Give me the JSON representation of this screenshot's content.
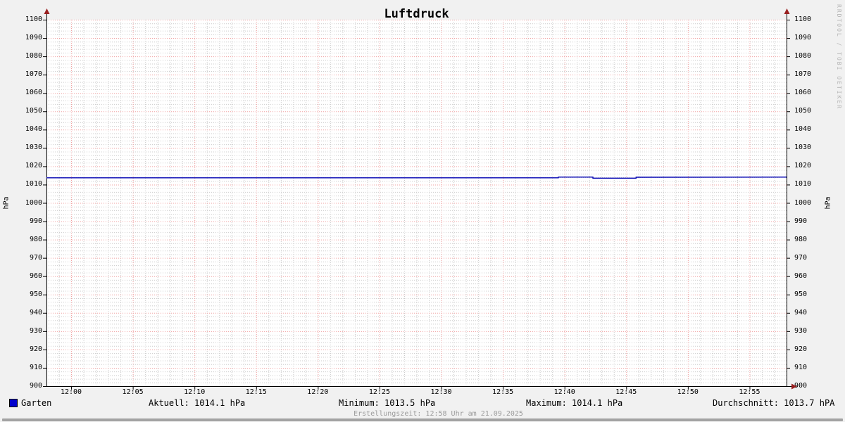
{
  "title": "Luftdruck",
  "watermark": "RRDTOOL / TOBI OETIKER",
  "footer": {
    "creation_text": "Erstellungszeit: 12:58 Uhr am 21.09.2025"
  },
  "colors": {
    "background": "#f1f1f1",
    "plot_background": "#ffffff",
    "major_grid": "#f0a0a0",
    "minor_grid": "#cccccc",
    "axis": "#000000",
    "arrow": "#992020",
    "line": "#0000b3",
    "legend_swatch": "#0000cc"
  },
  "legend": {
    "series_label": "Garten",
    "stats": {
      "aktuell": "Aktuell: 1014.1 hPa",
      "minimum": "Minimum: 1013.5 hPa",
      "maximum": "Maximum: 1014.1 hPa",
      "durchschnitt": "Durchschnitt: 1013.7 hPA"
    }
  },
  "axes": {
    "y_left_label": "hPa",
    "y_right_label": "hPa",
    "y_ticks": [
      "1100",
      "1090",
      "1080",
      "1070",
      "1060",
      "1050",
      "1040",
      "1030",
      "1020",
      "1010",
      "1000",
      "990",
      "980",
      "970",
      "960",
      "950",
      "940",
      "930",
      "920",
      "910",
      "900"
    ],
    "x_ticks": [
      "12:00",
      "12:05",
      "12:10",
      "12:15",
      "12:20",
      "12:25",
      "12:30",
      "12:35",
      "12:40",
      "12:45",
      "12:50",
      "12:55"
    ]
  },
  "chart_data": {
    "type": "line",
    "title": "Luftdruck",
    "xlabel": "",
    "ylabel": "hPa",
    "ylim": [
      900,
      1100
    ],
    "y_major_step": 10,
    "y_minor_step": 2,
    "x_start": "11:58",
    "x_end": "12:58",
    "x_major_step_min": 5,
    "x_minor_step_min": 1,
    "grid": true,
    "legend_position": "bottom",
    "series": [
      {
        "name": "Garten",
        "color": "#0000b3",
        "points_min_value": [
          [
            0,
            1013.7
          ],
          [
            41.5,
            1013.7
          ],
          [
            41.5,
            1014.1
          ],
          [
            44.3,
            1014.1
          ],
          [
            44.3,
            1013.5
          ],
          [
            47.8,
            1013.5
          ],
          [
            47.8,
            1014.0
          ],
          [
            60,
            1014.1
          ]
        ]
      }
    ],
    "stats": {
      "aktuell_hpa": 1014.1,
      "minimum_hpa": 1013.5,
      "maximum_hpa": 1014.1,
      "durchschnitt_hpa": 1013.7
    }
  }
}
